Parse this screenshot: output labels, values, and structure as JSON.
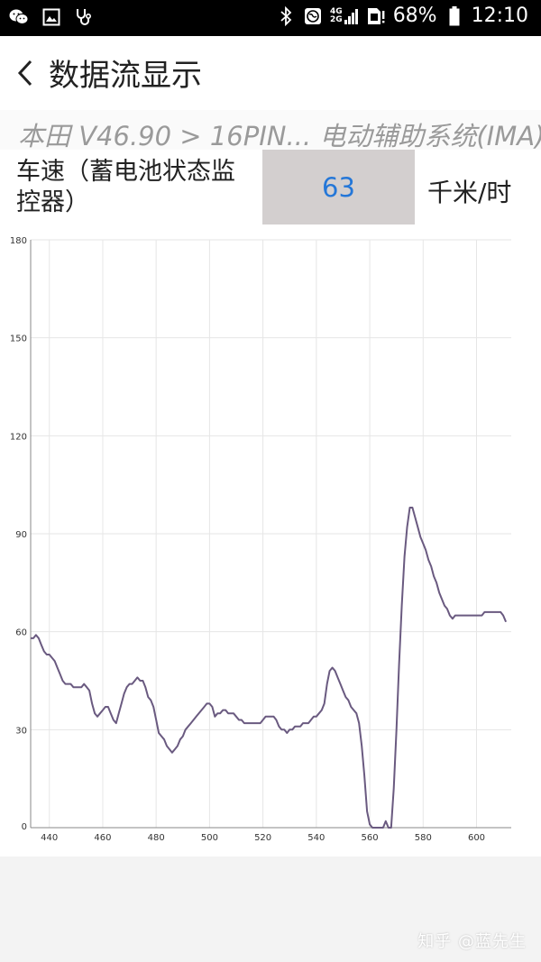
{
  "status_bar": {
    "left_icons": [
      "wechat-icon",
      "image-icon",
      "stethoscope-icon"
    ],
    "battery_percent": "68%",
    "time": "12:10",
    "network_top": "4G",
    "network_bottom": "2G"
  },
  "header": {
    "title": "数据流显示"
  },
  "breadcrumb": {
    "text": "本田 V46.90 > 16PIN... 电动辅助系统(IMA)"
  },
  "parameter": {
    "name": "车速（蓄电池状态监控器）",
    "value": "63",
    "unit": "千米/时"
  },
  "chart_data": {
    "type": "line",
    "xlim": [
      433,
      613
    ],
    "ylim": [
      0,
      180
    ],
    "xticks": [
      "440",
      "460",
      "480",
      "500",
      "520",
      "540",
      "560",
      "580",
      "600"
    ],
    "yticks": [
      "180",
      "150",
      "120",
      "90",
      "60",
      "30",
      "0"
    ],
    "grid": true,
    "line_color": "#6a5a80",
    "series": [
      {
        "points": [
          [
            433,
            58
          ],
          [
            434,
            58
          ],
          [
            435,
            59
          ],
          [
            436,
            58
          ],
          [
            437,
            56
          ],
          [
            438,
            54
          ],
          [
            439,
            53
          ],
          [
            440,
            53
          ],
          [
            441,
            52
          ],
          [
            442,
            51
          ],
          [
            443,
            49
          ],
          [
            444,
            47
          ],
          [
            445,
            45
          ],
          [
            446,
            44
          ],
          [
            447,
            44
          ],
          [
            448,
            44
          ],
          [
            449,
            43
          ],
          [
            450,
            43
          ],
          [
            451,
            43
          ],
          [
            452,
            43
          ],
          [
            453,
            44
          ],
          [
            454,
            43
          ],
          [
            455,
            42
          ],
          [
            456,
            38
          ],
          [
            457,
            35
          ],
          [
            458,
            34
          ],
          [
            459,
            35
          ],
          [
            460,
            36
          ],
          [
            461,
            37
          ],
          [
            462,
            37
          ],
          [
            463,
            35
          ],
          [
            464,
            33
          ],
          [
            465,
            32
          ],
          [
            466,
            35
          ],
          [
            467,
            38
          ],
          [
            468,
            41
          ],
          [
            469,
            43
          ],
          [
            470,
            44
          ],
          [
            471,
            44
          ],
          [
            472,
            45
          ],
          [
            473,
            46
          ],
          [
            474,
            45
          ],
          [
            475,
            45
          ],
          [
            476,
            43
          ],
          [
            477,
            40
          ],
          [
            478,
            39
          ],
          [
            479,
            37
          ],
          [
            480,
            33
          ],
          [
            481,
            29
          ],
          [
            482,
            28
          ],
          [
            483,
            27
          ],
          [
            484,
            25
          ],
          [
            485,
            24
          ],
          [
            486,
            23
          ],
          [
            487,
            24
          ],
          [
            488,
            25
          ],
          [
            489,
            27
          ],
          [
            490,
            28
          ],
          [
            491,
            30
          ],
          [
            492,
            31
          ],
          [
            493,
            32
          ],
          [
            494,
            33
          ],
          [
            495,
            34
          ],
          [
            496,
            35
          ],
          [
            497,
            36
          ],
          [
            498,
            37
          ],
          [
            499,
            38
          ],
          [
            500,
            38
          ],
          [
            501,
            37
          ],
          [
            502,
            34
          ],
          [
            503,
            35
          ],
          [
            504,
            35
          ],
          [
            505,
            36
          ],
          [
            506,
            36
          ],
          [
            507,
            35
          ],
          [
            508,
            35
          ],
          [
            509,
            35
          ],
          [
            510,
            34
          ],
          [
            511,
            33
          ],
          [
            512,
            33
          ],
          [
            513,
            32
          ],
          [
            514,
            32
          ],
          [
            515,
            32
          ],
          [
            516,
            32
          ],
          [
            517,
            32
          ],
          [
            518,
            32
          ],
          [
            519,
            32
          ],
          [
            520,
            33
          ],
          [
            521,
            34
          ],
          [
            522,
            34
          ],
          [
            523,
            34
          ],
          [
            524,
            34
          ],
          [
            525,
            33
          ],
          [
            526,
            31
          ],
          [
            527,
            30
          ],
          [
            528,
            30
          ],
          [
            529,
            29
          ],
          [
            530,
            30
          ],
          [
            531,
            30
          ],
          [
            532,
            31
          ],
          [
            533,
            31
          ],
          [
            534,
            31
          ],
          [
            535,
            32
          ],
          [
            536,
            32
          ],
          [
            537,
            32
          ],
          [
            538,
            33
          ],
          [
            539,
            34
          ],
          [
            540,
            34
          ],
          [
            541,
            35
          ],
          [
            542,
            36
          ],
          [
            543,
            38
          ],
          [
            544,
            44
          ],
          [
            545,
            48
          ],
          [
            546,
            49
          ],
          [
            547,
            48
          ],
          [
            548,
            46
          ],
          [
            549,
            44
          ],
          [
            550,
            42
          ],
          [
            551,
            40
          ],
          [
            552,
            39
          ],
          [
            553,
            37
          ],
          [
            554,
            36
          ],
          [
            555,
            35
          ],
          [
            556,
            32
          ],
          [
            557,
            25
          ],
          [
            558,
            16
          ],
          [
            559,
            5
          ],
          [
            560,
            1
          ],
          [
            561,
            0
          ],
          [
            562,
            0
          ],
          [
            563,
            0
          ],
          [
            564,
            0
          ],
          [
            565,
            0
          ],
          [
            566,
            2
          ],
          [
            567,
            0
          ],
          [
            568,
            0
          ],
          [
            569,
            12
          ],
          [
            570,
            30
          ],
          [
            571,
            50
          ],
          [
            572,
            68
          ],
          [
            573,
            83
          ],
          [
            574,
            92
          ],
          [
            575,
            98
          ],
          [
            576,
            98
          ],
          [
            577,
            95
          ],
          [
            578,
            92
          ],
          [
            579,
            89
          ],
          [
            580,
            87
          ],
          [
            581,
            85
          ],
          [
            582,
            82
          ],
          [
            583,
            80
          ],
          [
            584,
            77
          ],
          [
            585,
            75
          ],
          [
            586,
            72
          ],
          [
            587,
            70
          ],
          [
            588,
            68
          ],
          [
            589,
            67
          ],
          [
            590,
            65
          ],
          [
            591,
            64
          ],
          [
            592,
            65
          ],
          [
            593,
            65
          ],
          [
            594,
            65
          ],
          [
            595,
            65
          ],
          [
            596,
            65
          ],
          [
            597,
            65
          ],
          [
            598,
            65
          ],
          [
            599,
            65
          ],
          [
            600,
            65
          ],
          [
            601,
            65
          ],
          [
            602,
            65
          ],
          [
            603,
            66
          ],
          [
            604,
            66
          ],
          [
            605,
            66
          ],
          [
            606,
            66
          ],
          [
            607,
            66
          ],
          [
            608,
            66
          ],
          [
            609,
            66
          ],
          [
            610,
            65
          ],
          [
            611,
            63
          ]
        ]
      }
    ]
  },
  "watermark": "知乎 @蓝先生"
}
